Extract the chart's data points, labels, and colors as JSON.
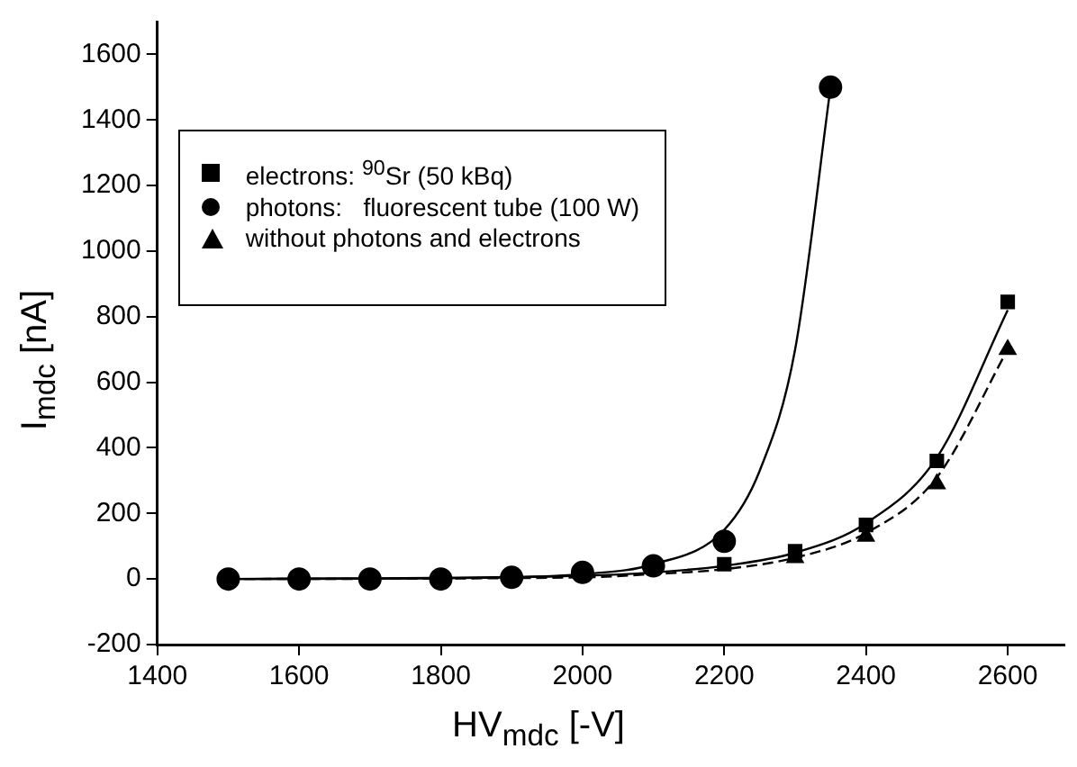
{
  "chart_data": {
    "type": "scatter",
    "xlabel": "HV$_{mdc}$ [-V]",
    "ylabel": "I$_{mdc}$ [nA]",
    "xlim": [
      1400,
      2680
    ],
    "ylim": [
      -200,
      1700
    ],
    "xticks": [
      1400,
      1600,
      1800,
      2000,
      2200,
      2400,
      2600
    ],
    "yticks": [
      -200,
      0,
      200,
      400,
      600,
      800,
      1000,
      1200,
      1400,
      1600
    ],
    "grid": false,
    "legend": "top left",
    "series": [
      {
        "name": "electrons: $^{90}$Sr (50 kBq)",
        "color": "#000000",
        "marker": "square",
        "x": [
          2200,
          2300,
          2400,
          2500,
          2600
        ],
        "values": [
          45,
          85,
          165,
          360,
          845
        ]
      },
      {
        "name": "photons:   fluorescent tube (100 W)",
        "color": "#000000",
        "marker": "circle",
        "x": [
          1500,
          1600,
          1700,
          1800,
          1900,
          2000,
          2100,
          2200,
          2350
        ],
        "values": [
          0,
          0,
          0,
          0,
          5,
          20,
          40,
          115,
          1500
        ]
      },
      {
        "name": "without photons and electrons",
        "color": "#000000",
        "marker": "triangle",
        "x": [
          2300,
          2400,
          2500,
          2600
        ],
        "values": [
          65,
          130,
          290,
          700
        ]
      },
      {
        "type": "line",
        "color": "#000000",
        "marker": "none",
        "line_style": "solid",
        "x": [
          1500,
          1900,
          2000,
          2100,
          2200,
          2250,
          2300,
          2350
        ],
        "values": [
          0,
          5,
          15,
          45,
          150,
          330,
          700,
          1500
        ]
      },
      {
        "type": "line",
        "color": "#000000",
        "marker": "none",
        "line_style": "solid",
        "x": [
          1500,
          2000,
          2100,
          2200,
          2300,
          2400,
          2500,
          2600
        ],
        "values": [
          0,
          10,
          20,
          40,
          80,
          170,
          370,
          820
        ]
      },
      {
        "type": "line",
        "color": "#000000",
        "marker": "none",
        "line_style": "dashed",
        "x": [
          1500,
          2000,
          2100,
          2200,
          2300,
          2400,
          2500,
          2600
        ],
        "values": [
          0,
          5,
          15,
          30,
          65,
          140,
          310,
          700
        ]
      }
    ]
  }
}
